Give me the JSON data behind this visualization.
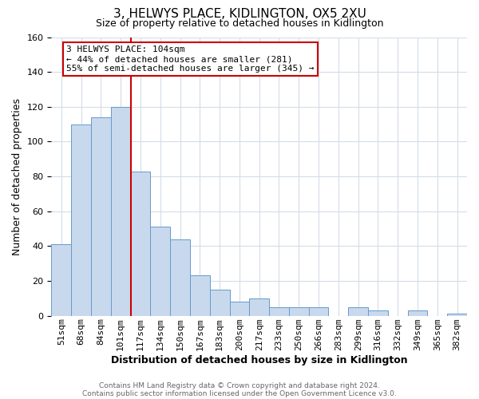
{
  "title": "3, HELWYS PLACE, KIDLINGTON, OX5 2XU",
  "subtitle": "Size of property relative to detached houses in Kidlington",
  "xlabel": "Distribution of detached houses by size in Kidlington",
  "ylabel": "Number of detached properties",
  "categories": [
    "51sqm",
    "68sqm",
    "84sqm",
    "101sqm",
    "117sqm",
    "134sqm",
    "150sqm",
    "167sqm",
    "183sqm",
    "200sqm",
    "217sqm",
    "233sqm",
    "250sqm",
    "266sqm",
    "283sqm",
    "299sqm",
    "316sqm",
    "332sqm",
    "349sqm",
    "365sqm",
    "382sqm"
  ],
  "values": [
    41,
    110,
    114,
    120,
    83,
    51,
    44,
    23,
    15,
    8,
    10,
    5,
    5,
    5,
    0,
    5,
    3,
    0,
    3,
    0,
    1
  ],
  "bar_color": "#c8d9ed",
  "bar_edge_color": "#6699cc",
  "vline_index": 3,
  "vline_color": "#cc0000",
  "annotation_title": "3 HELWYS PLACE: 104sqm",
  "annotation_line1": "← 44% of detached houses are smaller (281)",
  "annotation_line2": "55% of semi-detached houses are larger (345) →",
  "annotation_box_color": "#ffffff",
  "annotation_box_edge": "#cc0000",
  "ylim": [
    0,
    160
  ],
  "yticks": [
    0,
    20,
    40,
    60,
    80,
    100,
    120,
    140,
    160
  ],
  "footer1": "Contains HM Land Registry data © Crown copyright and database right 2024.",
  "footer2": "Contains public sector information licensed under the Open Government Licence v3.0.",
  "background_color": "#ffffff",
  "grid_color": "#d4dce8",
  "title_fontsize": 11,
  "subtitle_fontsize": 9,
  "xlabel_fontsize": 9,
  "ylabel_fontsize": 9,
  "tick_fontsize": 8,
  "annotation_fontsize": 8
}
